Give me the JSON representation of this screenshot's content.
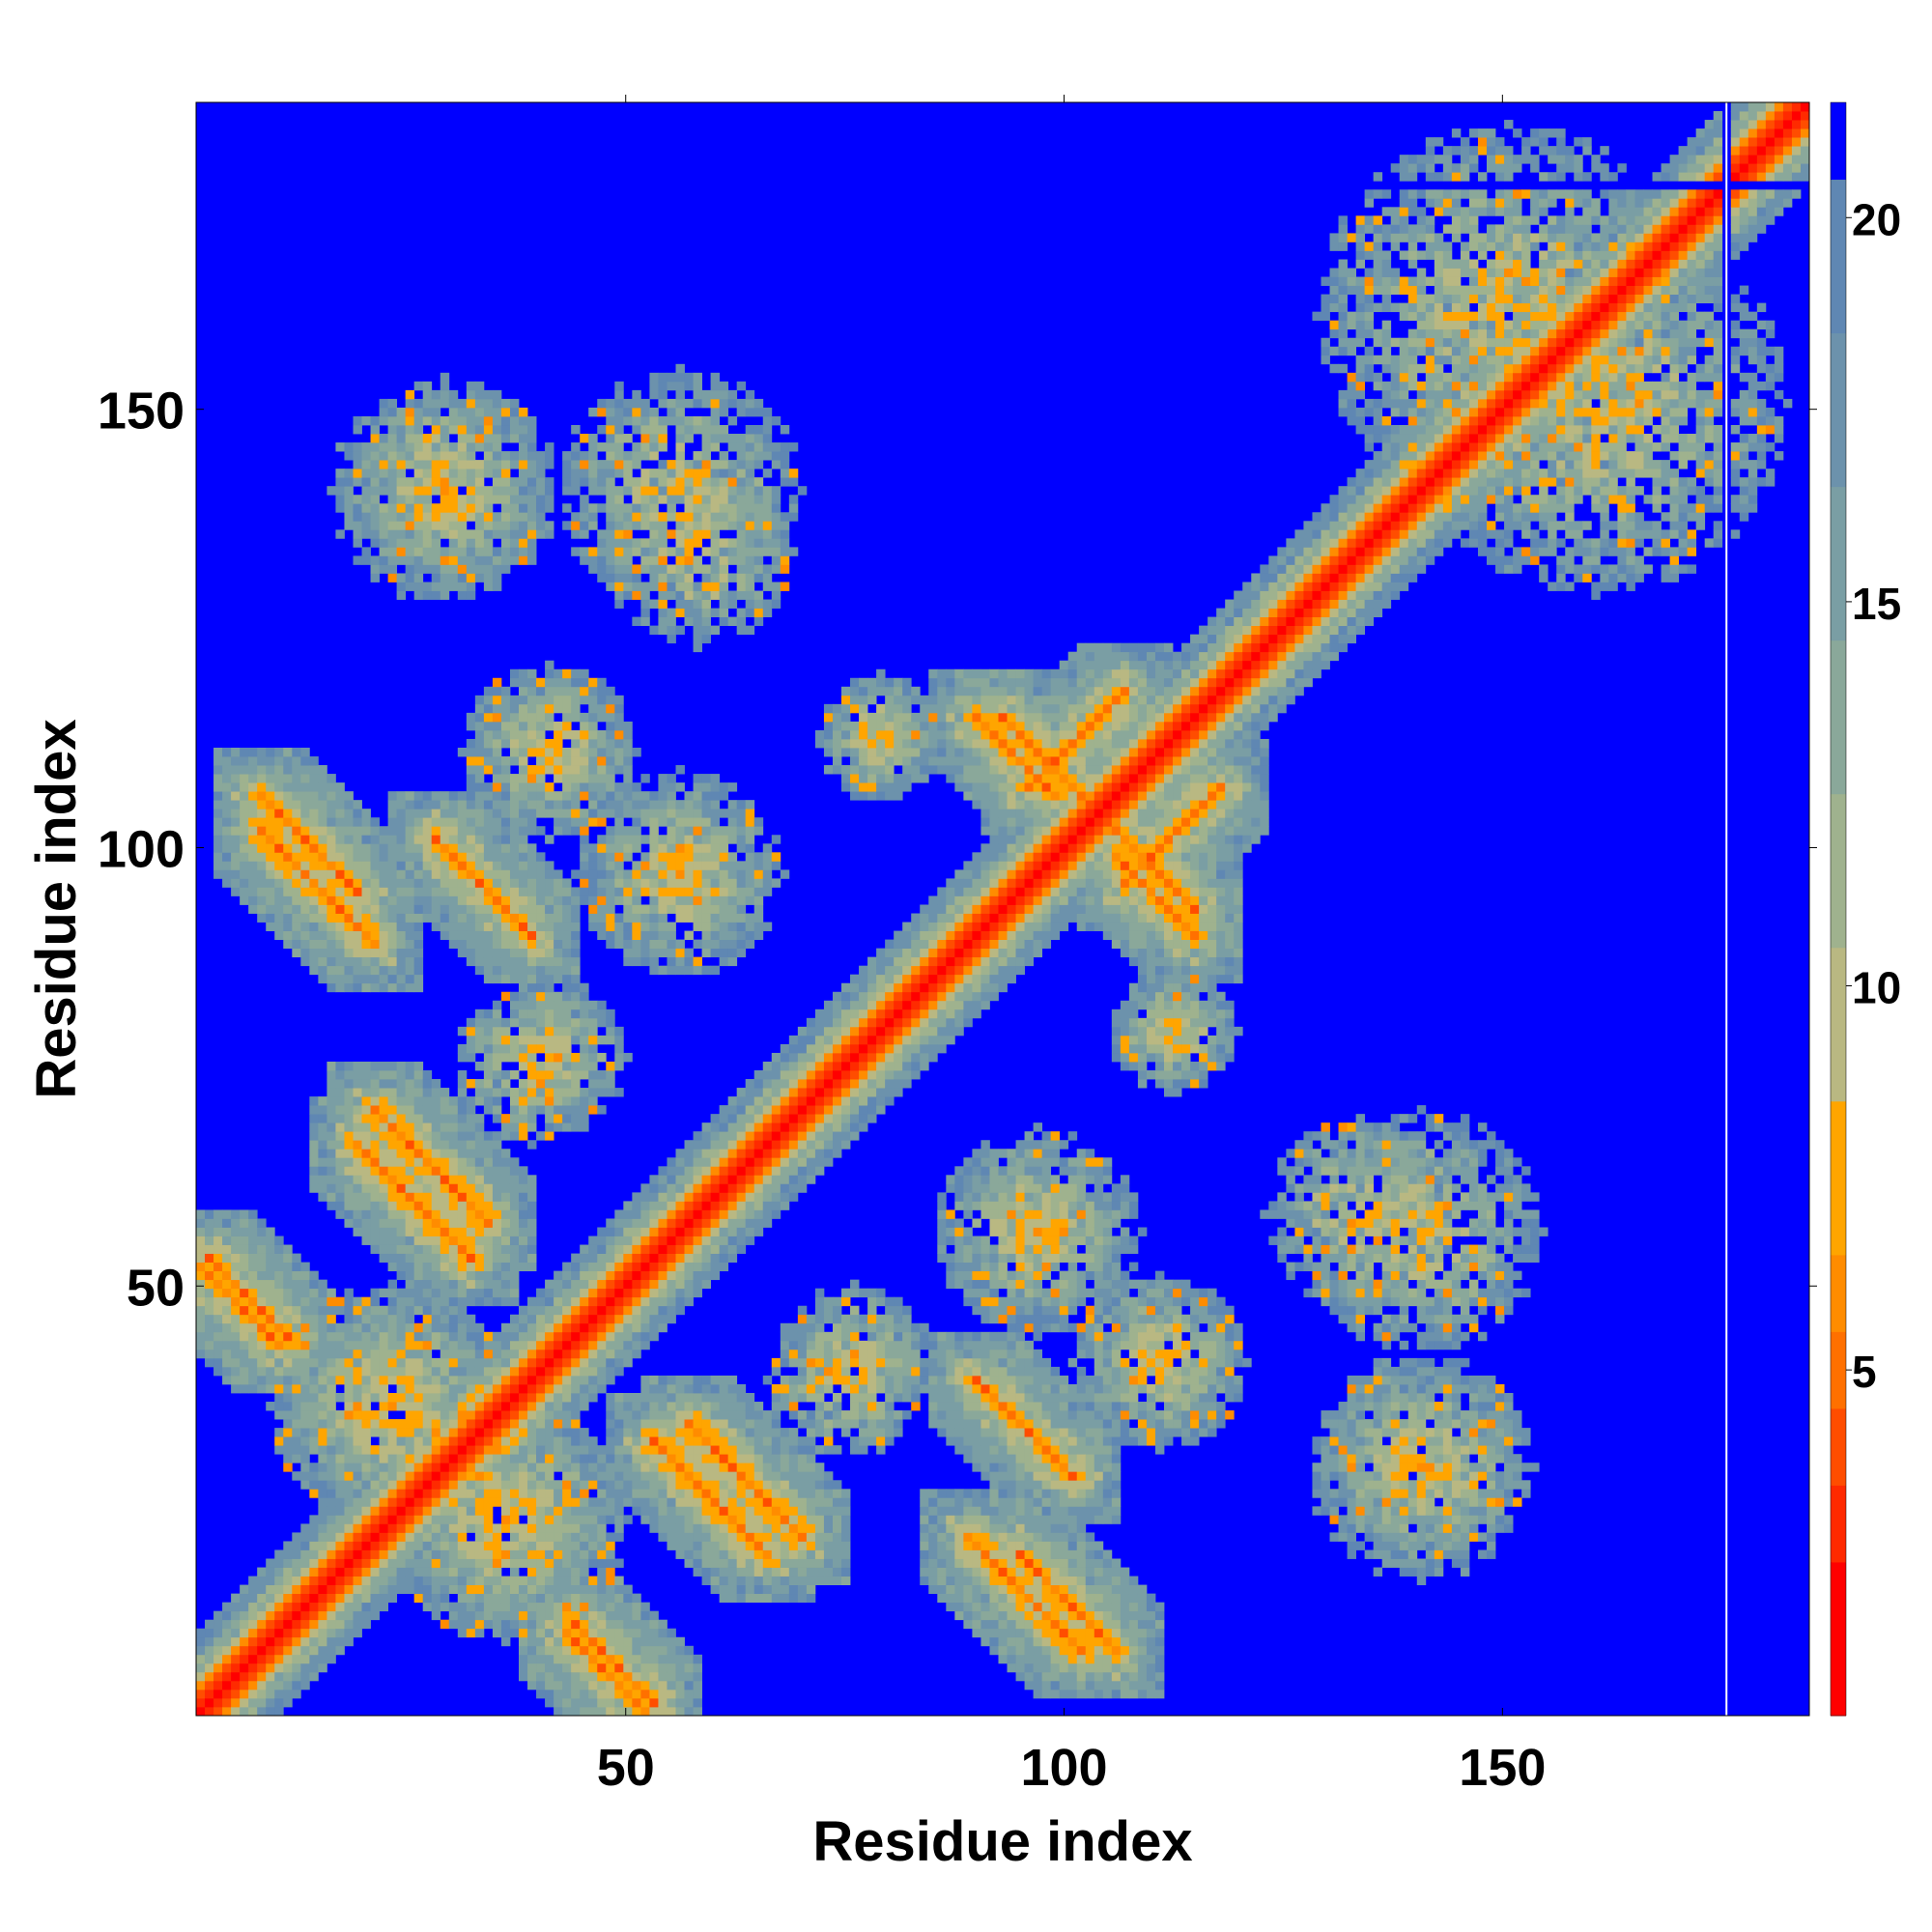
{
  "chart_data": {
    "type": "heatmap",
    "title": "",
    "xlabel": "Residue index",
    "ylabel": "Residue index",
    "n_residues": 185,
    "xlim": [
      1,
      185
    ],
    "ylim": [
      1,
      185
    ],
    "x_ticks": [
      50,
      100,
      150
    ],
    "y_ticks": [
      50,
      100,
      150
    ],
    "colorbar": {
      "ticks": [
        5,
        10,
        15,
        20
      ],
      "range": [
        0.5,
        21.5
      ],
      "colors": [
        "#ff0000",
        "#ff2a00",
        "#ff4d00",
        "#ff7000",
        "#ff8c00",
        "#ffa500",
        "#b9b882",
        "#9fb28e",
        "#8aa89a",
        "#7a9ea4",
        "#6c92ac",
        "#5f87b3",
        "#0000ff"
      ],
      "boundaries": [
        0.5,
        2.5,
        3.5,
        4.5,
        5.5,
        6.5,
        8.5,
        10.5,
        12.5,
        14.5,
        16.5,
        18.5,
        20.5,
        21.5
      ]
    },
    "description_values": {
      "missing_residue": 176,
      "diagonal_distance": 1,
      "background_distance": 21
    },
    "contact_features": [
      {
        "type": "antiparallel",
        "i0": 7,
        "j0": 101,
        "len": 14,
        "w": 1.6
      },
      {
        "type": "antiparallel",
        "i0": 18,
        "j0": 65,
        "len": 14,
        "w": 1.5
      },
      {
        "type": "antiparallel",
        "i0": 27,
        "j0": 100,
        "len": 12,
        "w": 1.4
      },
      {
        "type": "antiparallel",
        "i0": 42,
        "j0": 9,
        "len": 10,
        "w": 1.3
      },
      {
        "type": "antiparallel",
        "i0": 56,
        "j0": 33,
        "len": 14,
        "w": 1.5
      },
      {
        "type": "antiparallel",
        "i0": 92,
        "j0": 114,
        "len": 12,
        "w": 1.4
      },
      {
        "type": "antiparallel",
        "i0": 105,
        "j0": 98,
        "len": 10,
        "w": 1.3
      },
      {
        "type": "antiparallel",
        "i0": 94,
        "j0": 18,
        "len": 12,
        "w": 1.4
      },
      {
        "type": "antiparallel",
        "i0": 1,
        "j0": 52,
        "len": 10,
        "w": 1.3
      },
      {
        "type": "parallel",
        "i0": 106,
        "j0": 95,
        "len": 12,
        "w": 1.4
      },
      {
        "type": "blob",
        "ci": 40,
        "cj": 75,
        "r": 9
      },
      {
        "type": "blob",
        "ci": 74,
        "cj": 38,
        "r": 9
      },
      {
        "type": "blob",
        "ci": 78,
        "cj": 111,
        "r": 7
      },
      {
        "type": "blob",
        "ci": 112,
        "cj": 78,
        "r": 7
      },
      {
        "type": "blob",
        "ci": 28,
        "cj": 140,
        "r": 12
      },
      {
        "type": "blob",
        "ci": 57,
        "cj": 133,
        "r": 11
      },
      {
        "type": "blob",
        "ci": 150,
        "cj": 160,
        "r": 22
      },
      {
        "type": "blob",
        "ci": 140,
        "cj": 55,
        "r": 14
      },
      {
        "type": "blob",
        "ci": 140,
        "cj": 28,
        "r": 13
      },
      {
        "type": "blob",
        "ci": 96,
        "cj": 55,
        "r": 12
      },
      {
        "type": "blob",
        "ci": 55,
        "cj": 96,
        "r": 10
      },
      {
        "type": "blob",
        "ci": 110,
        "cj": 40,
        "r": 10
      },
      {
        "type": "blob",
        "ci": 40,
        "cj": 110,
        "r": 10
      },
      {
        "type": "blob",
        "ci": 22,
        "cj": 35,
        "r": 14
      },
      {
        "type": "blob",
        "ci": 35,
        "cj": 22,
        "r": 14
      }
    ]
  }
}
